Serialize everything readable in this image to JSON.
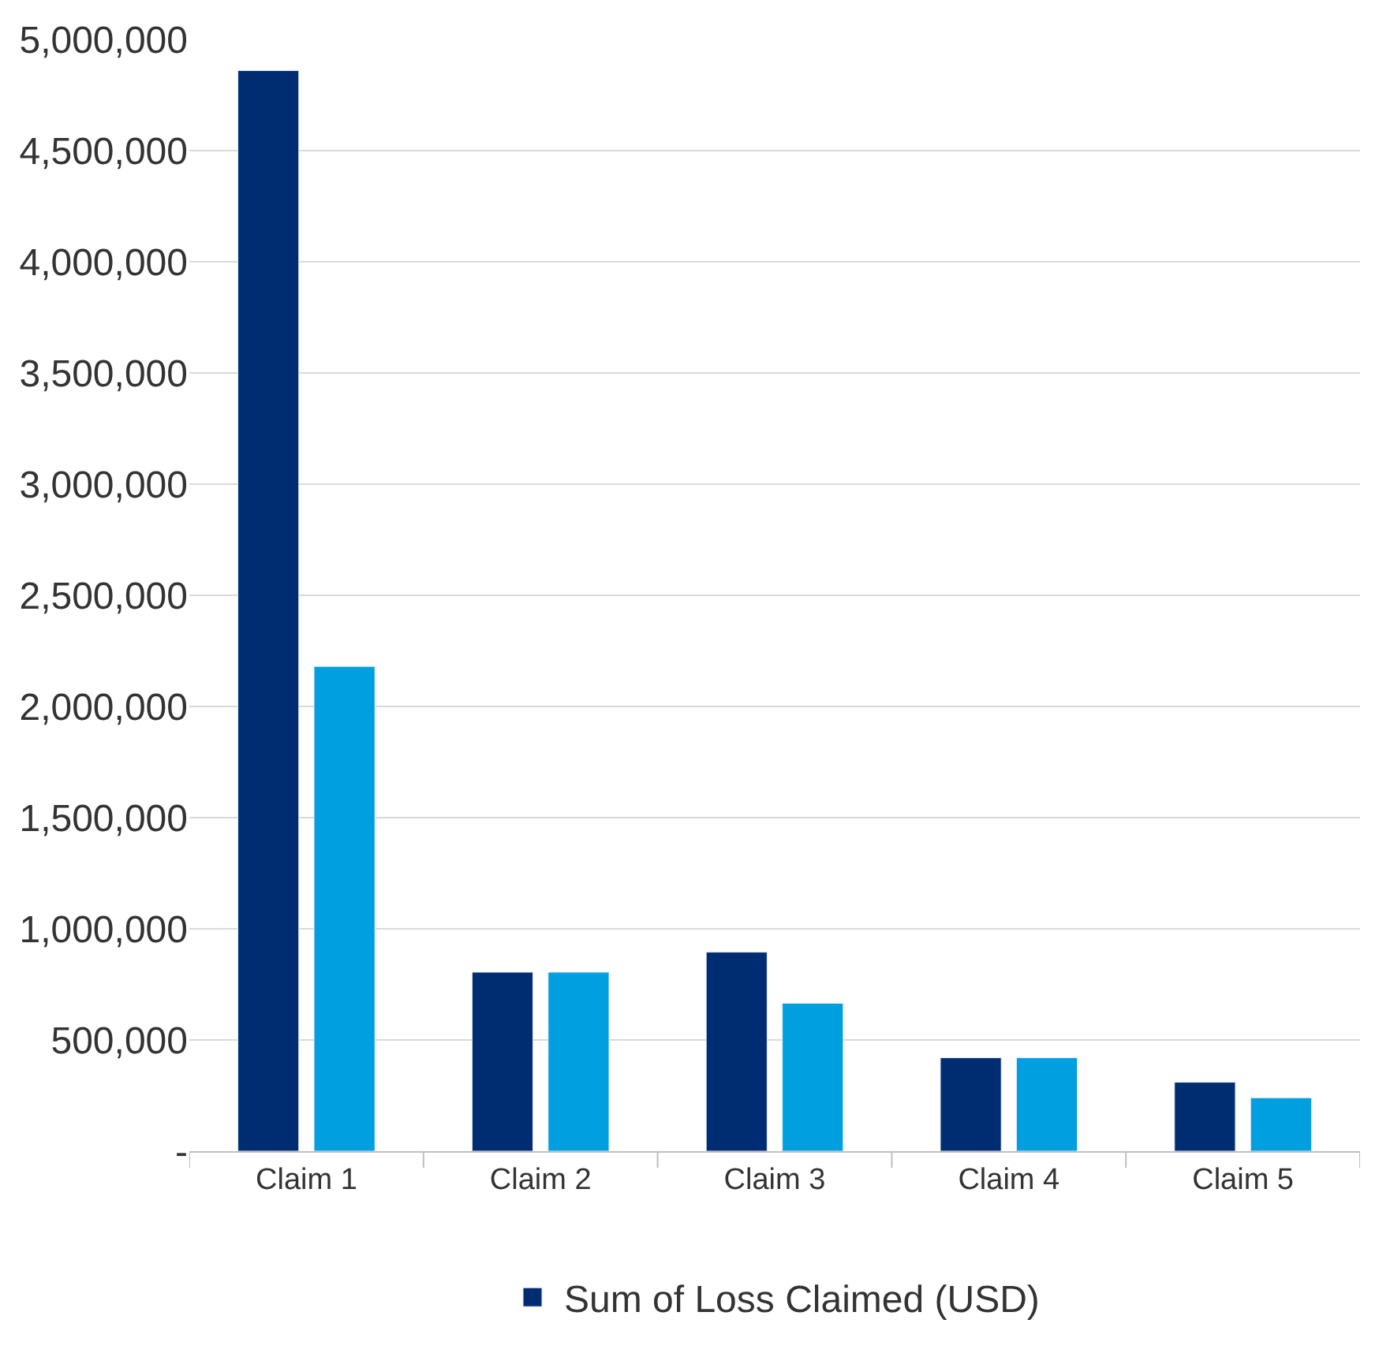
{
  "chart_data": {
    "type": "bar",
    "categories": [
      "Claim 1",
      "Claim 2",
      "Claim 3",
      "Claim 4",
      "Claim 5"
    ],
    "series": [
      {
        "name": "Sum of Loss Claimed (USD)",
        "color": "#002d72",
        "values": [
          4860000,
          805000,
          895000,
          420000,
          310000
        ]
      },
      {
        "color": "#009fdf",
        "values": [
          2180000,
          805000,
          665000,
          420000,
          240000
        ]
      }
    ],
    "ylim": [
      0,
      5000000
    ],
    "yticks": [
      {
        "value": 0,
        "label": "-"
      },
      {
        "value": 500000,
        "label": "500,000"
      },
      {
        "value": 1000000,
        "label": "1,000,000"
      },
      {
        "value": 1500000,
        "label": "1,500,000"
      },
      {
        "value": 2000000,
        "label": "2,000,000"
      },
      {
        "value": 2500000,
        "label": "2,500,000"
      },
      {
        "value": 3000000,
        "label": "3,000,000"
      },
      {
        "value": 3500000,
        "label": "3,500,000"
      },
      {
        "value": 4000000,
        "label": "4,000,000"
      },
      {
        "value": 4500000,
        "label": "4,500,000"
      },
      {
        "value": 5000000,
        "label": "5,000,000"
      }
    ],
    "grid": "y",
    "legend": "bottom"
  }
}
